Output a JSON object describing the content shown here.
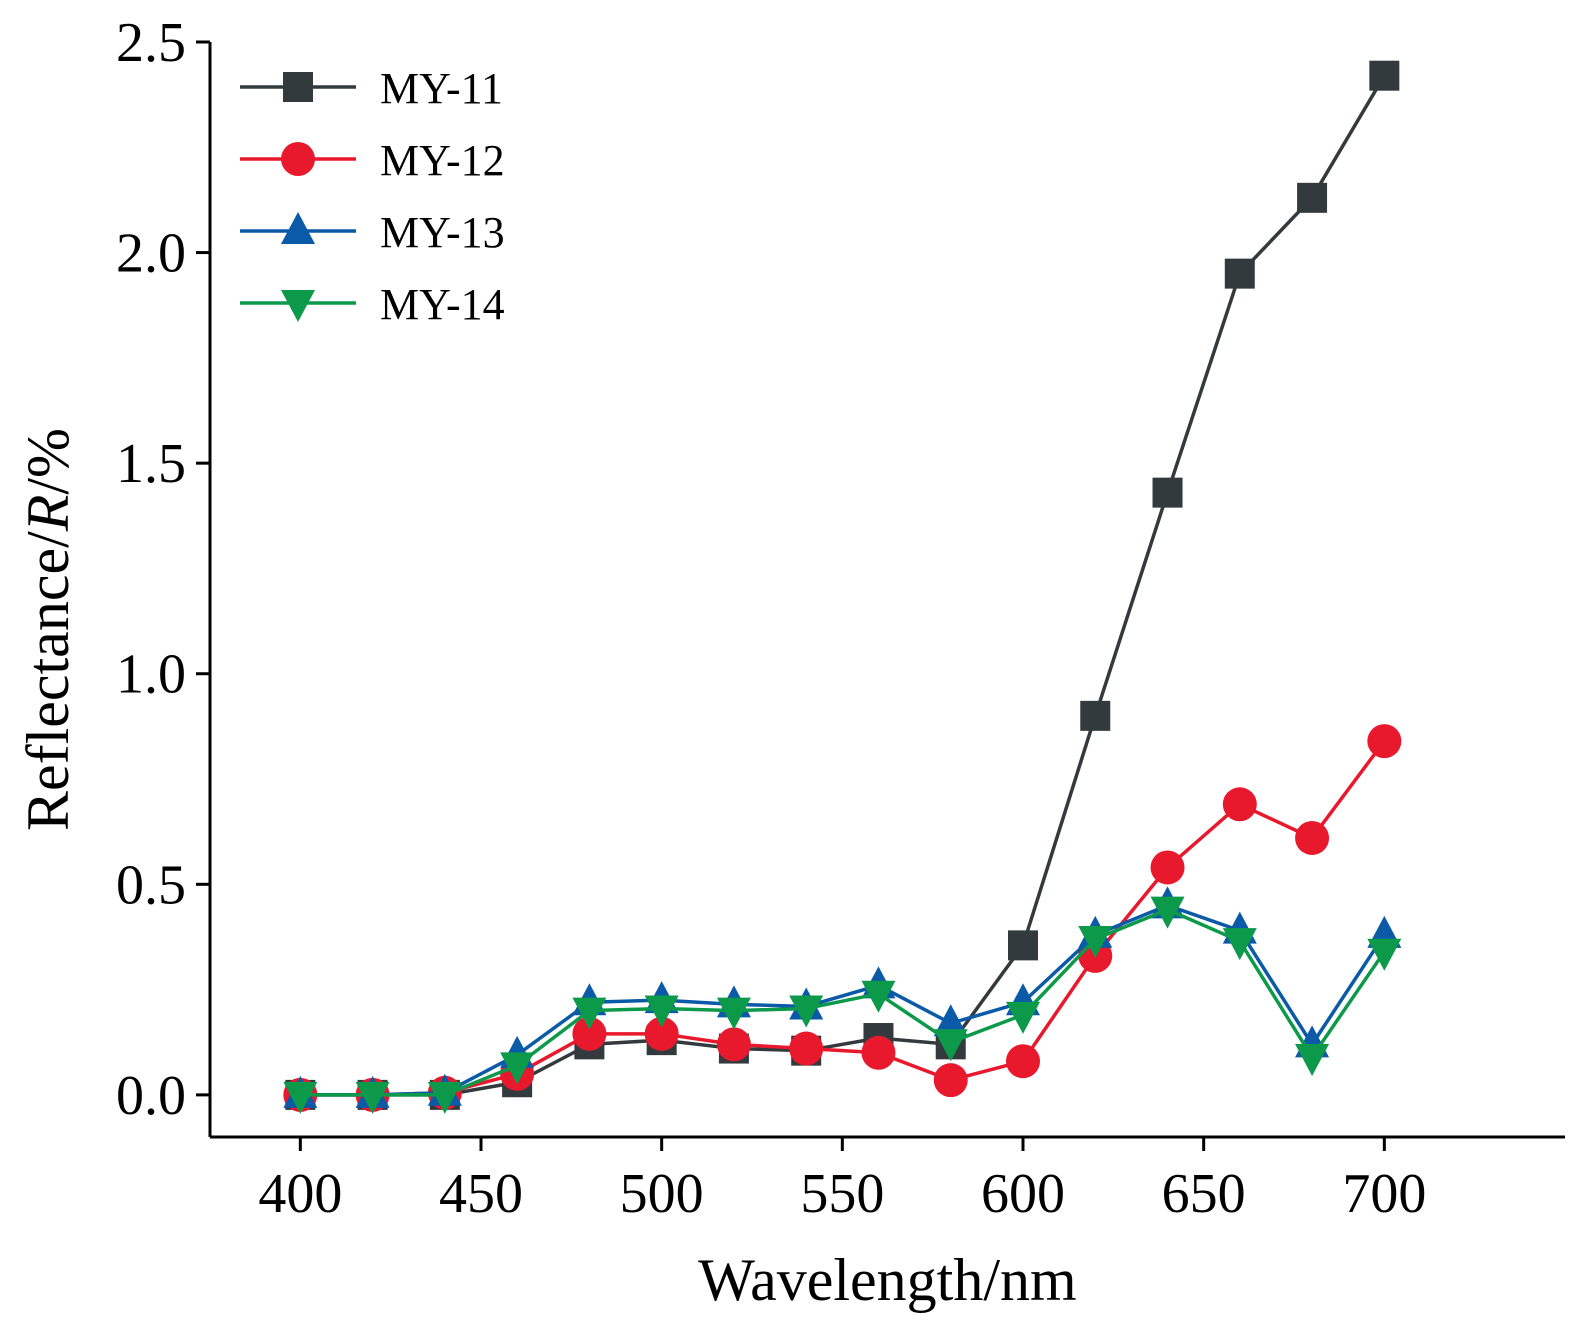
{
  "chart_data": {
    "type": "line",
    "xlabel": "Wavelength/nm",
    "ylabel_prefix": "Reflectance/",
    "ylabel_italic": "R",
    "ylabel_suffix": "/%",
    "xlim": [
      375,
      750
    ],
    "ylim": [
      -0.1,
      2.5
    ],
    "xticks": [
      400,
      450,
      500,
      550,
      600,
      650,
      700
    ],
    "yticks": [
      0.0,
      0.5,
      1.0,
      1.5,
      2.0,
      2.5
    ],
    "xtick_labels": [
      "400",
      "450",
      "500",
      "550",
      "600",
      "650",
      "700"
    ],
    "ytick_labels": [
      "0.0",
      "0.5",
      "1.0",
      "1.5",
      "2.0",
      "2.5"
    ],
    "grid": false,
    "legend_position": "top-left",
    "x": [
      400,
      420,
      440,
      460,
      480,
      500,
      520,
      540,
      560,
      580,
      600,
      620,
      640,
      660,
      680,
      700
    ],
    "series": [
      {
        "name": "MY-11",
        "color": "#333a3d",
        "marker": "square",
        "values": [
          0.0,
          0.0,
          0.0,
          0.03,
          0.12,
          0.13,
          0.11,
          0.105,
          0.135,
          0.12,
          0.355,
          0.9,
          1.43,
          1.95,
          2.13,
          2.42
        ]
      },
      {
        "name": "MY-12",
        "color": "#e8192c",
        "marker": "circle",
        "values": [
          0.0,
          0.0,
          0.005,
          0.05,
          0.145,
          0.145,
          0.12,
          0.11,
          0.1,
          0.035,
          0.08,
          0.33,
          0.54,
          0.69,
          0.61,
          0.84
        ]
      },
      {
        "name": "MY-13",
        "color": "#0a5aa8",
        "marker": "triangle-up",
        "values": [
          0.0,
          0.0,
          0.005,
          0.095,
          0.22,
          0.225,
          0.215,
          0.21,
          0.26,
          0.17,
          0.22,
          0.38,
          0.45,
          0.39,
          0.12,
          0.38
        ]
      },
      {
        "name": "MY-14",
        "color": "#0c9a4a",
        "marker": "triangle-down",
        "values": [
          0.0,
          0.0,
          0.0,
          0.07,
          0.2,
          0.205,
          0.2,
          0.205,
          0.24,
          0.125,
          0.19,
          0.37,
          0.44,
          0.365,
          0.09,
          0.34
        ]
      }
    ]
  }
}
